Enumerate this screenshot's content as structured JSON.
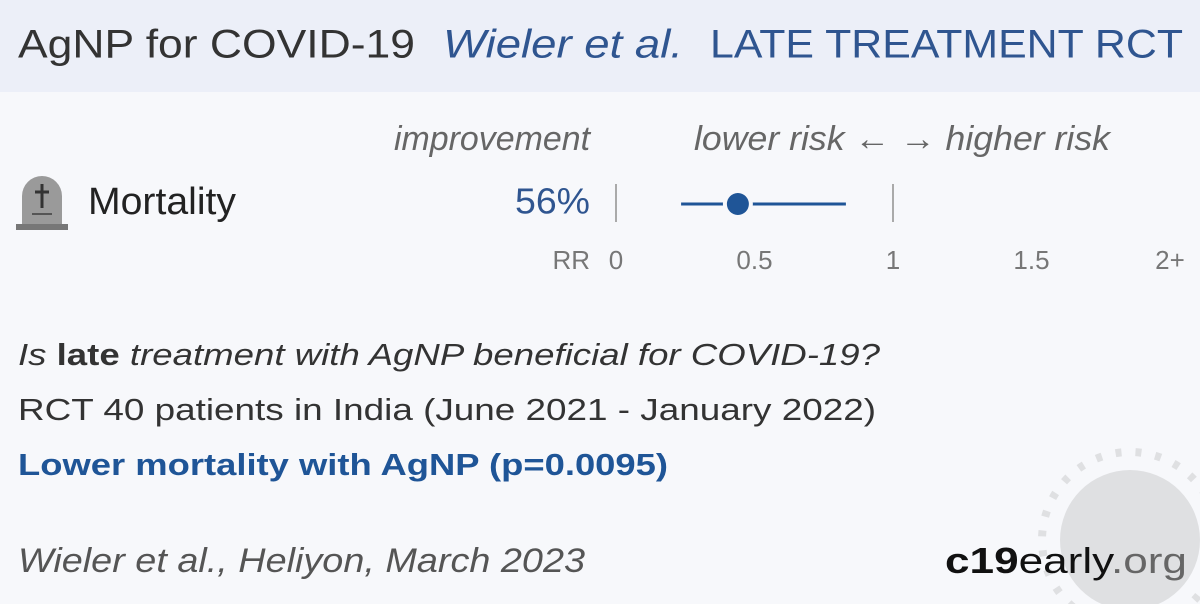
{
  "header": {
    "treatment": "AgNP for COVID-19",
    "study": "Wieler et al.",
    "kind": "LATE TREATMENT RCT"
  },
  "outcome": {
    "label": "Mortality",
    "improvement_heading": "improvement",
    "improvement": "56%",
    "direction": "lower risk ← → higher risk",
    "scale_label": "RR"
  },
  "forest": {
    "estimate": 0.44,
    "ci": [
      0.235,
      0.83
    ],
    "xlim": [
      0,
      2
    ],
    "xticks": [
      0,
      0.5,
      1,
      1.5,
      {
        "value": 2,
        "label": "2+"
      }
    ],
    "color": "#1f5597"
  },
  "summary": {
    "question": [
      "Is ",
      "late",
      " treatment with AgNP beneficial for COVID-19?"
    ],
    "design": "RCT 40 patients in India (June 2021 - January 2022)",
    "result": "Lower mortality with AgNP (p=0.0095)"
  },
  "footer": {
    "citation": "Wieler et al., Heliyon, March 2023",
    "logo": [
      "c19",
      "early",
      ".org"
    ]
  }
}
